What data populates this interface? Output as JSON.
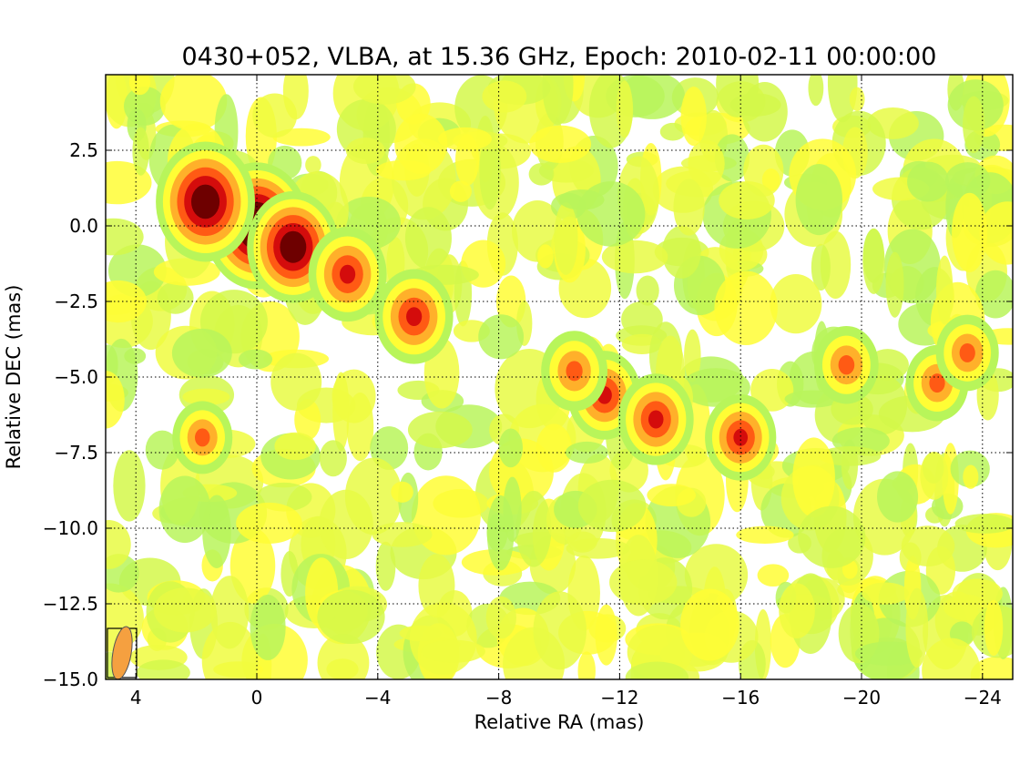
{
  "chart_data": {
    "type": "heatmap",
    "title": "0430+052, VLBA, at 15.36 GHz, Epoch: 2010-02-11 00:00:00",
    "xlabel": "Relative RA (mas)",
    "ylabel": "Relative DEC (mas)",
    "xlim": [
      5,
      -25
    ],
    "ylim": [
      -15,
      5
    ],
    "x_ticks": [
      4,
      0,
      -4,
      -8,
      -12,
      -16,
      -20,
      -24
    ],
    "x_tick_labels": [
      "4",
      "0",
      "−4",
      "−8",
      "−12",
      "−16",
      "−20",
      "−24"
    ],
    "y_ticks": [
      2.5,
      0.0,
      -2.5,
      -5.0,
      -7.5,
      -10.0,
      -12.5,
      -15.0
    ],
    "y_tick_labels": [
      "2.5",
      "0.0",
      "−2.5",
      "−5.0",
      "−7.5",
      "−10.0",
      "−12.5",
      "−15.0"
    ],
    "grid": true,
    "colormap": [
      "#2b6bff",
      "#2ff2c8",
      "#b8f55a",
      "#fffd35",
      "#ffb02a",
      "#ff5a14",
      "#d40c0c",
      "#6e0000"
    ],
    "components": [
      {
        "x": 0.0,
        "y": 0.0,
        "intensity": 1.0
      },
      {
        "x": 1.7,
        "y": 0.8,
        "intensity": 0.92
      },
      {
        "x": -1.2,
        "y": -0.7,
        "intensity": 0.82
      },
      {
        "x": -3.0,
        "y": -1.6,
        "intensity": 0.62
      },
      {
        "x": -5.2,
        "y": -3.0,
        "intensity": 0.62
      },
      {
        "x": -11.5,
        "y": -5.6,
        "intensity": 0.55
      },
      {
        "x": -13.2,
        "y": -6.4,
        "intensity": 0.58
      },
      {
        "x": -16.0,
        "y": -7.0,
        "intensity": 0.52
      },
      {
        "x": -10.5,
        "y": -4.8,
        "intensity": 0.45
      },
      {
        "x": -19.5,
        "y": -4.6,
        "intensity": 0.42
      },
      {
        "x": -22.5,
        "y": -5.2,
        "intensity": 0.4
      },
      {
        "x": -23.5,
        "y": -4.2,
        "intensity": 0.4
      },
      {
        "x": 1.8,
        "y": -7.0,
        "intensity": 0.36
      }
    ],
    "beam": {
      "major_mas": 1.3,
      "minor_mas": 0.55,
      "pa_deg": 10,
      "color": "#f5a040"
    }
  }
}
